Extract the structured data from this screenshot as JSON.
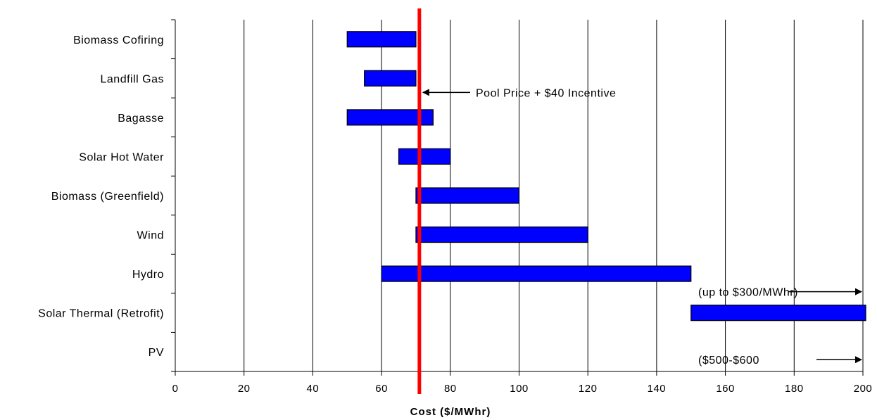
{
  "chart_data": {
    "type": "bar",
    "orientation": "horizontal-range",
    "categories": [
      "Biomass Cofiring",
      "Landfill Gas",
      "Bagasse",
      "Solar Hot Water",
      "Biomass (Greenfield)",
      "Wind",
      "Hydro",
      "Solar Thermal (Retrofit)",
      "PV"
    ],
    "ranges": [
      [
        50,
        70
      ],
      [
        55,
        70
      ],
      [
        50,
        75
      ],
      [
        65,
        80
      ],
      [
        70,
        100
      ],
      [
        70,
        120
      ],
      [
        60,
        150
      ],
      [
        150,
        200
      ],
      null
    ],
    "xlabel": "Cost ($/MWhr)",
    "xlim": [
      0,
      200
    ],
    "xticks": [
      0,
      20,
      40,
      60,
      80,
      100,
      120,
      140,
      160,
      180,
      200
    ],
    "grid": "vertical",
    "bar_color": "#0000ff",
    "reference_line": {
      "x": 71,
      "color": "#ff0000",
      "label": "Pool Price + $40 Incentive"
    },
    "annotations": [
      {
        "category": "Solar Thermal (Retrofit)",
        "text": "(up to $300/MWhr)"
      },
      {
        "category": "PV",
        "text": "($500-$600"
      }
    ]
  }
}
